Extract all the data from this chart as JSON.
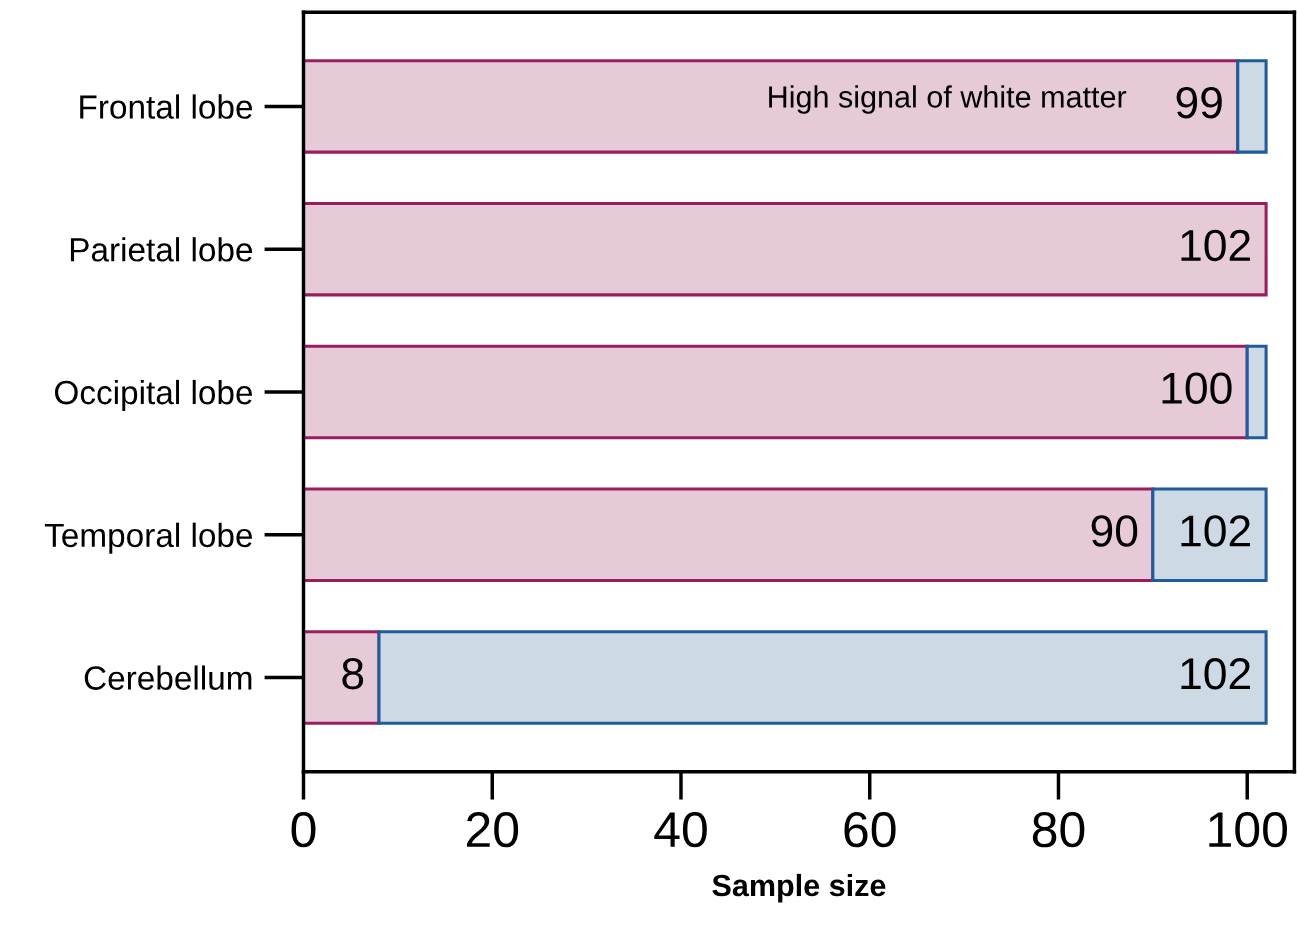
{
  "chart_data": {
    "type": "bar",
    "orientation": "horizontal",
    "stacked": true,
    "xlabel": "Sample size",
    "categories": [
      "Frontal lobe",
      "Parietal lobe",
      "Occipital lobe",
      "Temporal lobe",
      "Cerebellum"
    ],
    "series": [
      {
        "name": "High signal of white matter",
        "color": "#e6cad8",
        "values": [
          99,
          102,
          100,
          90,
          8
        ],
        "value_labels": [
          "99",
          "102",
          "100",
          "90",
          "8"
        ]
      },
      {
        "color": "#cdd9e5",
        "values": [
          3,
          null,
          2,
          12,
          94
        ]
      }
    ],
    "totals": [
      null,
      null,
      null,
      "102",
      "102"
    ],
    "xlim": [
      0,
      105
    ],
    "xticks": [
      0,
      20,
      40,
      60,
      80,
      100
    ],
    "grid": false,
    "legend": false
  }
}
